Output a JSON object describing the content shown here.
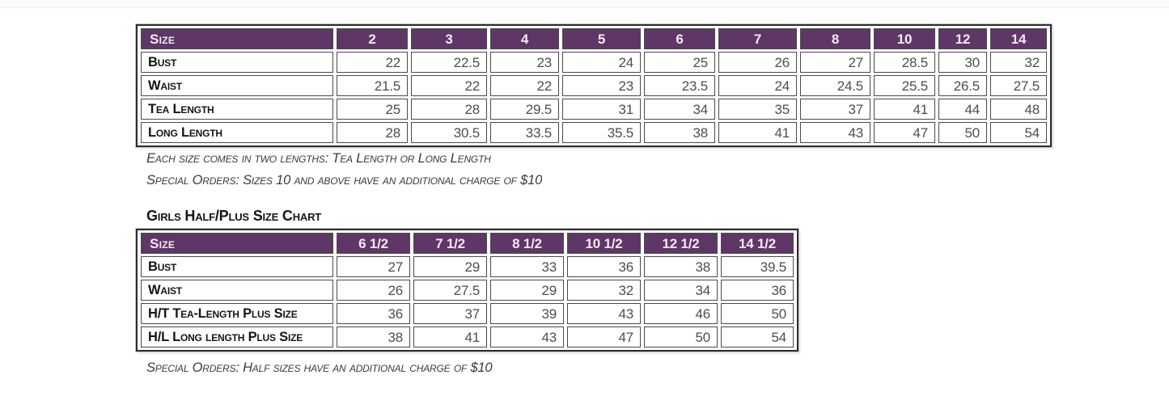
{
  "colors": {
    "header_bg": "#5e3766",
    "header_text": "#f3eaf2",
    "cell_border": "#4a4a4a",
    "outer_border": "#2d2d2d",
    "value_text": "#4d4d4d",
    "label_text": "#151515",
    "note_text": "#3a3a3a"
  },
  "table1": {
    "header": {
      "label": "Size",
      "sizes": [
        "2",
        "3",
        "4",
        "5",
        "6",
        "7",
        "8",
        "10",
        "12",
        "14"
      ]
    },
    "rows": [
      {
        "label": "Bust",
        "values": [
          "22",
          "22.5",
          "23",
          "24",
          "25",
          "26",
          "27",
          "28.5",
          "30",
          "32"
        ]
      },
      {
        "label": "Waist",
        "values": [
          "21.5",
          "22",
          "22",
          "23",
          "23.5",
          "24",
          "24.5",
          "25.5",
          "26.5",
          "27.5"
        ]
      },
      {
        "label": "Tea Length",
        "values": [
          "25",
          "28",
          "29.5",
          "31",
          "34",
          "35",
          "37",
          "41",
          "44",
          "48"
        ]
      },
      {
        "label": "Long Length",
        "values": [
          "28",
          "30.5",
          "33.5",
          "35.5",
          "38",
          "41",
          "43",
          "47",
          "50",
          "54"
        ]
      }
    ],
    "notes": [
      "Each size comes in two lengths: Tea Length or Long Length",
      "Special Orders: Sizes 10 and above have an additional charge of $10"
    ]
  },
  "table2": {
    "title": "Girls Half/Plus Size Chart",
    "header": {
      "label": "Size",
      "sizes": [
        "6 1/2",
        "7 1/2",
        "8 1/2",
        "10 1/2",
        "12 1/2",
        "14 1/2"
      ]
    },
    "rows": [
      {
        "label": "Bust",
        "values": [
          "27",
          "29",
          "33",
          "36",
          "38",
          "39.5"
        ]
      },
      {
        "label": "Waist",
        "values": [
          "26",
          "27.5",
          "29",
          "32",
          "34",
          "36"
        ]
      },
      {
        "label": "H/T Tea-Length Plus Size",
        "values": [
          "36",
          "37",
          "39",
          "43",
          "46",
          "50"
        ]
      },
      {
        "label": "H/L Long length Plus Size",
        "values": [
          "38",
          "41",
          "43",
          "47",
          "50",
          "54"
        ]
      }
    ],
    "notes": [
      "Special Orders: Half sizes have an additional charge of $10"
    ]
  }
}
